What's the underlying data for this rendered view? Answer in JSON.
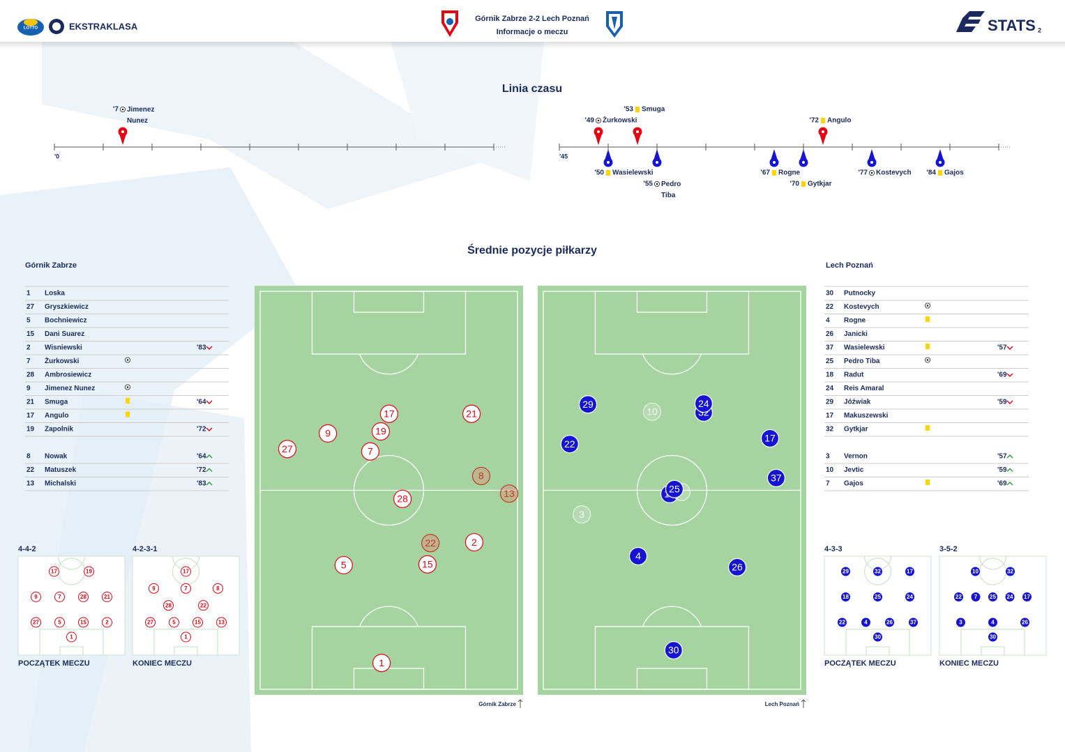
{
  "header": {
    "lotto": "LOTTO",
    "league": "EKSTRAKLASA",
    "match": "Górnik Zabrze 2-2 Lech Poznań",
    "subtitle": "Informacje o meczu",
    "brand": "STATS",
    "page": "2"
  },
  "timeline": {
    "title": "Linia czasu",
    "halves": [
      {
        "label": "'0",
        "start": 0,
        "end": 45
      },
      {
        "label": "'45",
        "start": 45,
        "end": 90
      }
    ],
    "events": [
      {
        "team": "home",
        "minute": 7,
        "minute_label": "'7",
        "type": "goal",
        "player": "Jimenez Nunez"
      },
      {
        "team": "home",
        "minute": 49,
        "minute_label": "'49",
        "type": "goal",
        "player": "Żurkowski"
      },
      {
        "team": "away",
        "minute": 50,
        "minute_label": "'50",
        "type": "yellow",
        "player": "Wasielewski"
      },
      {
        "team": "home",
        "minute": 53,
        "minute_label": "'53",
        "type": "yellow",
        "player": "Smuga"
      },
      {
        "team": "away",
        "minute": 55,
        "minute_label": "'55",
        "type": "goal",
        "player": "Pedro Tiba"
      },
      {
        "team": "away",
        "minute": 67,
        "minute_label": "'67",
        "type": "yellow",
        "player": "Rogne"
      },
      {
        "team": "away",
        "minute": 70,
        "minute_label": "'70",
        "type": "yellow",
        "player": "Gytkjar"
      },
      {
        "team": "home",
        "minute": 72,
        "minute_label": "'72",
        "type": "yellow",
        "player": "Angulo"
      },
      {
        "team": "away",
        "minute": 77,
        "minute_label": "'77",
        "type": "goal",
        "player": "Kostevych"
      },
      {
        "team": "away",
        "minute": 84,
        "minute_label": "'84",
        "type": "yellow",
        "player": "Gajos"
      }
    ]
  },
  "positions": {
    "title": "Średnie pozycje piłkarzy",
    "teams": [
      {
        "name": "Górnik Zabrze",
        "side": "home",
        "color": "#e30613",
        "lineup": [
          {
            "number": 1,
            "name": "Loska"
          },
          {
            "number": 27,
            "name": "Gryszkiewicz"
          },
          {
            "number": 5,
            "name": "Bochniewicz"
          },
          {
            "number": 15,
            "name": "Dani Suarez"
          },
          {
            "number": 2,
            "name": "Wisniewski",
            "sub": "'83",
            "sub_dir": "out"
          },
          {
            "number": 7,
            "name": "Żurkowski",
            "event": "goal"
          },
          {
            "number": 28,
            "name": "Ambrosiewicz"
          },
          {
            "number": 9,
            "name": "Jimenez Nunez",
            "event": "goal"
          },
          {
            "number": 21,
            "name": "Smuga",
            "event": "yellow",
            "sub": "'64",
            "sub_dir": "out"
          },
          {
            "number": 17,
            "name": "Angulo",
            "event": "yellow"
          },
          {
            "number": 19,
            "name": "Zapolnik",
            "sub": "'72",
            "sub_dir": "out"
          }
        ],
        "subs": [
          {
            "number": 8,
            "name": "Nowak",
            "sub": "'64",
            "sub_dir": "in"
          },
          {
            "number": 22,
            "name": "Matuszek",
            "sub": "'72",
            "sub_dir": "in"
          },
          {
            "number": 13,
            "name": "Michalski",
            "sub": "'83",
            "sub_dir": "in"
          }
        ],
        "dots": [
          {
            "number": 17,
            "x": 50.1,
            "y": 31.3
          },
          {
            "number": 21,
            "x": 80.8,
            "y": 31.3
          },
          {
            "number": 9,
            "x": 27.3,
            "y": 36.1
          },
          {
            "number": 19,
            "x": 47.0,
            "y": 35.6
          },
          {
            "number": 27,
            "x": 12.2,
            "y": 39.9
          },
          {
            "number": 7,
            "x": 43.1,
            "y": 40.5
          },
          {
            "number": 8,
            "x": 84.4,
            "y": 46.5
          },
          {
            "number": 13,
            "x": 94.8,
            "y": 50.8
          },
          {
            "number": 28,
            "x": 55.1,
            "y": 52.1
          },
          {
            "number": 22,
            "x": 65.5,
            "y": 62.9
          },
          {
            "number": 2,
            "x": 81.8,
            "y": 62.7
          },
          {
            "number": 5,
            "x": 33.2,
            "y": 68.3
          },
          {
            "number": 15,
            "x": 64.4,
            "y": 68.1
          },
          {
            "number": 1,
            "x": 47.3,
            "y": 92.2
          }
        ],
        "formations": [
          {
            "label": "4-4-2",
            "caption": "POCZĄTEK MECZU",
            "goalkeeper": 1,
            "rows": [
              [
                27,
                5,
                15,
                2
              ],
              [
                9,
                7,
                28,
                21
              ],
              [
                17,
                19
              ]
            ]
          },
          {
            "label": "4-2-3-1",
            "caption": "KONIEC MECZU",
            "goalkeeper": 1,
            "rows": [
              [
                27,
                5,
                15,
                13
              ],
              [
                28,
                22
              ],
              [
                9,
                7,
                8
              ],
              [
                17
              ]
            ]
          }
        ]
      },
      {
        "name": "Lech Poznań",
        "side": "away",
        "color": "#1414d2",
        "lineup": [
          {
            "number": 30,
            "name": "Putnocky"
          },
          {
            "number": 22,
            "name": "Kostevych",
            "event": "goal"
          },
          {
            "number": 4,
            "name": "Rogne",
            "event": "yellow"
          },
          {
            "number": 26,
            "name": "Janicki"
          },
          {
            "number": 37,
            "name": "Wasielewski",
            "event": "yellow",
            "sub": "'57",
            "sub_dir": "out"
          },
          {
            "number": 25,
            "name": "Pedro Tiba",
            "event": "goal"
          },
          {
            "number": 18,
            "name": "Radut",
            "sub": "'69",
            "sub_dir": "out"
          },
          {
            "number": 24,
            "name": "Reis Amaral"
          },
          {
            "number": 29,
            "name": "Jóźwiak",
            "sub": "'59",
            "sub_dir": "out"
          },
          {
            "number": 17,
            "name": "Makuszewski"
          },
          {
            "number": 32,
            "name": "Gytkjar",
            "event": "yellow"
          }
        ],
        "subs": [
          {
            "number": 3,
            "name": "Vernon",
            "sub": "'57",
            "sub_dir": "in"
          },
          {
            "number": 10,
            "name": "Jevtic",
            "sub": "'59",
            "sub_dir": "in"
          },
          {
            "number": 7,
            "name": "Gajos",
            "event": "yellow",
            "sub": "'69",
            "sub_dir": "in"
          }
        ],
        "dots": [
          {
            "number": 29,
            "x": 18.7,
            "y": 29.0
          },
          {
            "number": 10,
            "x": 42.6,
            "y": 30.8
          },
          {
            "number": 32,
            "x": 61.8,
            "y": 31.0
          },
          {
            "number": 24,
            "x": 61.8,
            "y": 28.8
          },
          {
            "number": 22,
            "x": 11.9,
            "y": 38.7
          },
          {
            "number": 17,
            "x": 86.5,
            "y": 37.3
          },
          {
            "number": 37,
            "x": 88.8,
            "y": 47.0
          },
          {
            "number": 18,
            "x": 49.1,
            "y": 50.9
          },
          {
            "number": 7,
            "x": 53.5,
            "y": 50.4
          },
          {
            "number": 25,
            "x": 50.9,
            "y": 49.7
          },
          {
            "number": 3,
            "x": 16.4,
            "y": 55.9
          },
          {
            "number": 4,
            "x": 37.4,
            "y": 66.1
          },
          {
            "number": 26,
            "x": 74.3,
            "y": 68.8
          },
          {
            "number": 30,
            "x": 50.6,
            "y": 89.1
          }
        ],
        "formations": [
          {
            "label": "4-3-3",
            "caption": "POCZĄTEK MECZU",
            "goalkeeper": 30,
            "rows": [
              [
                22,
                4,
                26,
                37
              ],
              [
                18,
                25,
                24
              ],
              [
                29,
                32,
                17
              ]
            ]
          },
          {
            "label": "3-5-2",
            "caption": "KONIEC MECZU",
            "goalkeeper": 30,
            "rows": [
              [
                3,
                4,
                26
              ],
              [
                22,
                7,
                25,
                24,
                17
              ],
              [
                10,
                32
              ]
            ]
          }
        ]
      }
    ]
  }
}
